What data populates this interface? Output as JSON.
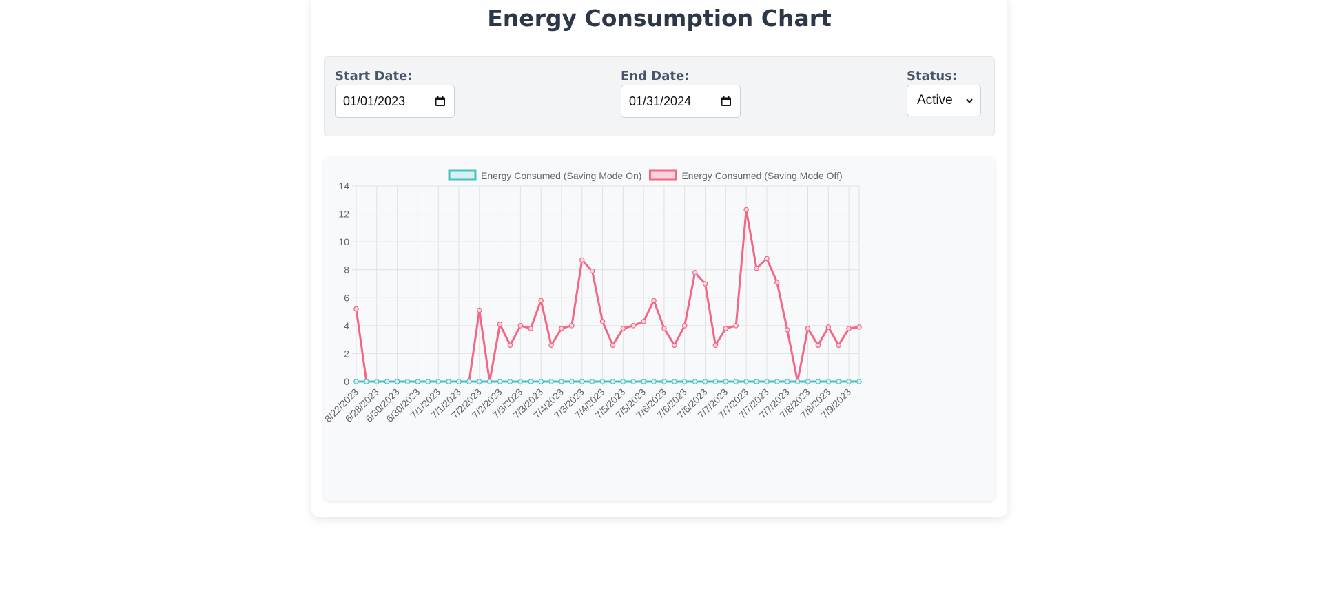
{
  "page": {
    "title": "Energy Consumption Chart"
  },
  "filters": {
    "start_label": "Start Date:",
    "start_value": "01/01/2023",
    "end_label": "End Date:",
    "end_value": "01/31/2024",
    "status_label": "Status:",
    "status_value": "Active"
  },
  "icons": {
    "calendar": "calendar-icon",
    "dropdown": "chevron-down-icon"
  },
  "chart_data": {
    "type": "line",
    "title": "",
    "xlabel": "",
    "ylabel": "",
    "ylim": [
      0,
      14
    ],
    "yticks": [
      0,
      2,
      4,
      6,
      8,
      10,
      12,
      14
    ],
    "grid": true,
    "legend_position": "top-center",
    "x": [
      "8/22/2023",
      "6/28/2023",
      "6/28/2023",
      "6/30/2023",
      "6/30/2023",
      "6/30/2023",
      "6/30/2023",
      "7/1/2023",
      "7/1/2023",
      "7/1/2023",
      "7/1/2023",
      "7/2/2023",
      "7/2/2023",
      "7/2/2023",
      "7/2/2023",
      "7/3/2023",
      "7/3/2023",
      "7/3/2023",
      "7/3/2023",
      "7/4/2023",
      "7/4/2023",
      "7/3/2023",
      "7/3/2023",
      "7/4/2023",
      "7/4/2023",
      "7/5/2023",
      "7/5/2023",
      "7/5/2023",
      "7/5/2023",
      "7/6/2023",
      "7/6/2023",
      "7/6/2023",
      "7/6/2023",
      "7/6/2023",
      "7/6/2023",
      "7/7/2023",
      "7/7/2023",
      "7/7/2023",
      "7/7/2023",
      "7/7/2023",
      "7/7/2023",
      "7/7/2023",
      "7/7/2023",
      "7/8/2023",
      "7/8/2023",
      "7/8/2023",
      "7/8/2023",
      "7/9/2023",
      "7/9/2023",
      "7/9/2023"
    ],
    "x_tick_labels": [
      "8/22/2023",
      "6/28/2023",
      "6/30/2023",
      "6/30/2023",
      "7/1/2023",
      "7/1/2023",
      "7/2/2023",
      "7/2/2023",
      "7/3/2023",
      "7/3/2023",
      "7/4/2023",
      "7/3/2023",
      "7/4/2023",
      "7/5/2023",
      "7/5/2023",
      "7/6/2023",
      "7/6/2023",
      "7/6/2023",
      "7/7/2023",
      "7/7/2023",
      "7/7/2023",
      "7/7/2023",
      "7/8/2023",
      "7/8/2023",
      "7/9/2023"
    ],
    "series": [
      {
        "name": "Energy Consumed (Saving Mode On)",
        "color": "#4bc0c0",
        "fill": "#d6f1f1",
        "values": [
          0,
          0,
          0,
          0,
          0,
          0,
          0,
          0,
          0,
          0,
          0,
          0,
          0,
          0,
          0,
          0,
          0,
          0,
          0,
          0,
          0,
          0,
          0,
          0,
          0,
          0,
          0,
          0,
          0,
          0,
          0,
          0,
          0,
          0,
          0,
          0,
          0,
          0,
          0,
          0,
          0,
          0,
          0,
          0,
          0,
          0,
          0,
          0,
          0,
          0
        ]
      },
      {
        "name": "Energy Consumed (Saving Mode Off)",
        "color": "#f56584",
        "fill": "#fbd3dd",
        "values": [
          5.2,
          0,
          0,
          0,
          0,
          0,
          0,
          0,
          0,
          0,
          0,
          0,
          5.1,
          0,
          4.1,
          2.6,
          4.0,
          3.8,
          5.8,
          2.6,
          3.8,
          4.0,
          8.7,
          7.9,
          4.3,
          2.6,
          3.8,
          4.0,
          4.3,
          5.8,
          3.8,
          2.6,
          4.0,
          7.8,
          7.0,
          2.6,
          3.8,
          4.0,
          12.3,
          8.1,
          8.8,
          7.1,
          3.7,
          0,
          3.8,
          2.6,
          3.9,
          2.6,
          3.8,
          3.9
        ]
      }
    ]
  }
}
